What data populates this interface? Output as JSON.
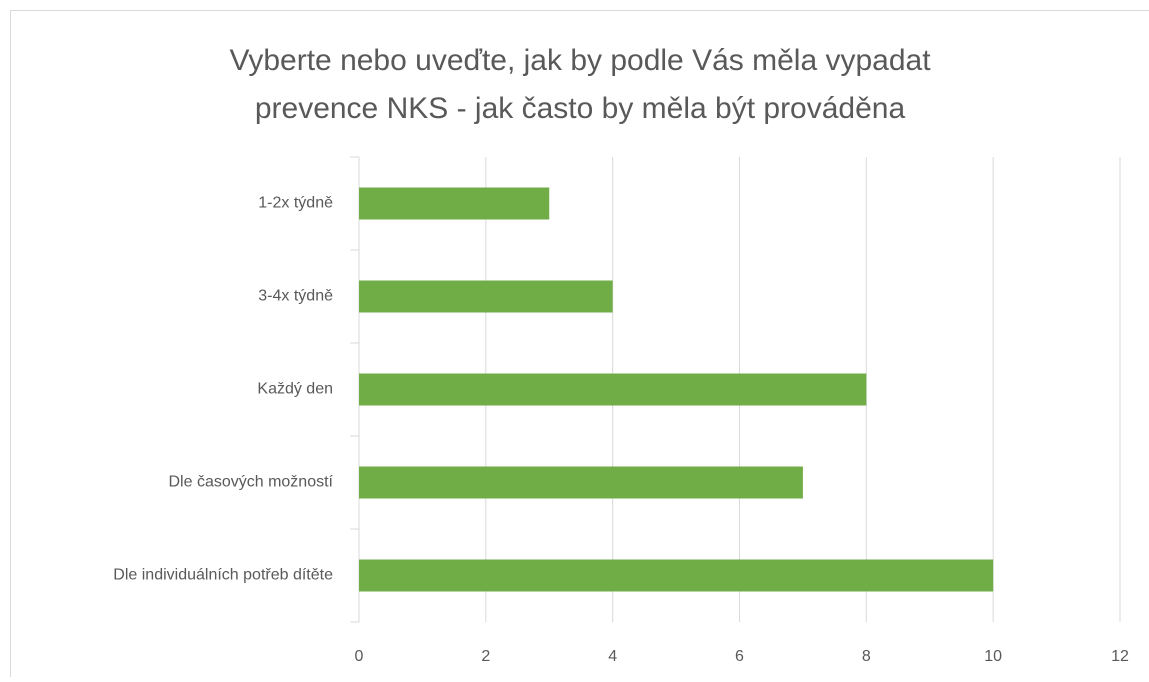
{
  "chart_data": {
    "type": "barh",
    "title": [
      "Vyberte nebo uveďte, jak by podle Vás měla vypadat",
      "prevence NKS - jak často by měla být prováděna"
    ],
    "categories": [
      "1-2x týdně",
      "3-4x týdně",
      "Každý den",
      "Dle časových možností",
      "Dle individuálních potřeb dítěte"
    ],
    "values": [
      3,
      4,
      8,
      7,
      10
    ],
    "color": "#70ad47",
    "xlim": [
      0,
      12
    ],
    "xticks": [
      0,
      2,
      4,
      6,
      8,
      10,
      12
    ],
    "grid": true
  }
}
